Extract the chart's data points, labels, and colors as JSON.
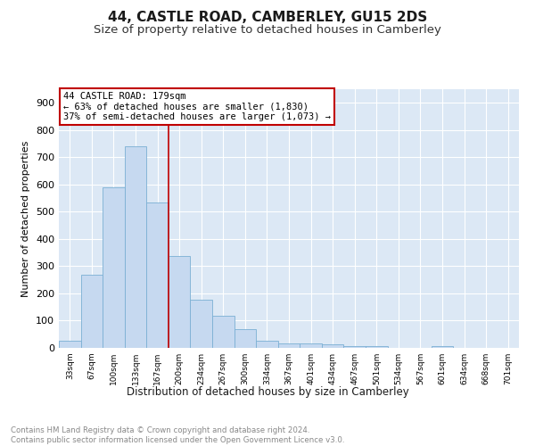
{
  "title": "44, CASTLE ROAD, CAMBERLEY, GU15 2DS",
  "subtitle": "Size of property relative to detached houses in Camberley",
  "xlabel": "Distribution of detached houses by size in Camberley",
  "ylabel": "Number of detached properties",
  "footer_line1": "Contains HM Land Registry data © Crown copyright and database right 2024.",
  "footer_line2": "Contains public sector information licensed under the Open Government Licence v3.0.",
  "bar_labels": [
    "33sqm",
    "67sqm",
    "100sqm",
    "133sqm",
    "167sqm",
    "200sqm",
    "234sqm",
    "267sqm",
    "300sqm",
    "334sqm",
    "367sqm",
    "401sqm",
    "434sqm",
    "467sqm",
    "501sqm",
    "534sqm",
    "567sqm",
    "601sqm",
    "634sqm",
    "668sqm",
    "701sqm"
  ],
  "bar_values": [
    25,
    270,
    590,
    740,
    535,
    338,
    178,
    118,
    68,
    25,
    15,
    15,
    12,
    8,
    8,
    0,
    0,
    8,
    0,
    0,
    0
  ],
  "bar_color": "#c6d9f0",
  "bar_edgecolor": "#7bafd4",
  "highlight_color": "#c00000",
  "property_label": "44 CASTLE ROAD: 179sqm",
  "annotation_line1": "← 63% of detached houses are smaller (1,830)",
  "annotation_line2": "37% of semi-detached houses are larger (1,073) →",
  "annotation_box_color": "#ffffff",
  "annotation_box_edgecolor": "#c00000",
  "ylim": [
    0,
    950
  ],
  "yticks": [
    0,
    100,
    200,
    300,
    400,
    500,
    600,
    700,
    800,
    900
  ],
  "plot_bg_color": "#dce8f5",
  "title_fontsize": 11,
  "subtitle_fontsize": 9.5,
  "grid_color": "#ffffff",
  "vline_x": 4.5
}
